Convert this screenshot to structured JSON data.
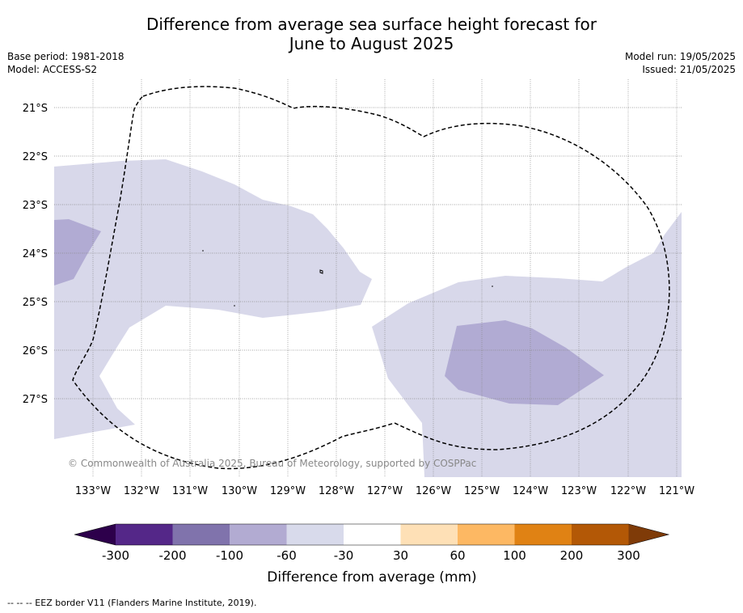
{
  "title_line1": "Difference from average sea surface height forecast for",
  "title_line2": "June to August 2025",
  "meta": {
    "base_period": "Base period: 1981-2018",
    "model": "Model: ACCESS-S2",
    "model_run": "Model run: 19/05/2025",
    "issued": "Issued: 21/05/2025"
  },
  "map": {
    "latitude_labels": [
      "21°S",
      "22°S",
      "23°S",
      "24°S",
      "25°S",
      "26°S",
      "27°S"
    ],
    "longitude_labels": [
      "133°W",
      "132°W",
      "131°W",
      "130°W",
      "129°W",
      "128°W",
      "127°W",
      "126°W",
      "125°W",
      "124°W",
      "123°W",
      "122°W",
      "121°W"
    ],
    "copyright": "© Commonwealth of Australia 2025, Bureau of Meteorology, supported by COSPPac",
    "colors": {
      "band_neg_30_60": "#d8d8ea",
      "band_neg_60_100": "#b1abd3",
      "eez_border": "#000000",
      "gridline": "#888888"
    }
  },
  "colorbar": {
    "tick_labels": [
      "-300",
      "-200",
      "-100",
      "-60",
      "-30",
      "30",
      "60",
      "100",
      "200",
      "300"
    ],
    "colors": [
      "#2d004b",
      "#542788",
      "#8073ac",
      "#b2abd2",
      "#d8daeb",
      "#ffffff",
      "#fee0b6",
      "#fdb863",
      "#e08214",
      "#b35806",
      "#7f3b08"
    ],
    "label": "Difference from average (mm)"
  },
  "footnote": "--  --  -- EEZ border V11 (Flanders Marine Institute, 2019)."
}
